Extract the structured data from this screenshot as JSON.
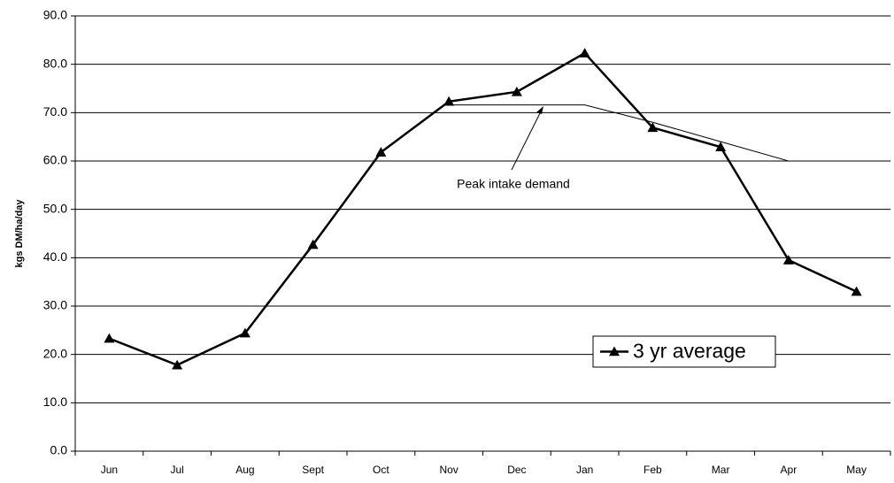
{
  "chart_data": {
    "type": "line",
    "y_label": "kgs DM/ha/day",
    "categories": [
      "Jun",
      "Jul",
      "Aug",
      "Sept",
      "Oct",
      "Nov",
      "Dec",
      "Jan",
      "Feb",
      "Mar",
      "Apr",
      "May"
    ],
    "series": [
      {
        "name": "3 yr average",
        "color": "#000000",
        "values": [
          23.3,
          17.8,
          24.4,
          42.7,
          61.8,
          72.3,
          74.3,
          82.3,
          66.9,
          62.9,
          39.5,
          33.0
        ]
      }
    ],
    "annotation": {
      "text": "Peak intake demand",
      "color": "#000000",
      "values": [
        null,
        null,
        null,
        null,
        null,
        71.6,
        71.6,
        71.6,
        68.0,
        64.0,
        60.0,
        null
      ]
    },
    "ylim": [
      0,
      90
    ],
    "yticks": [
      {
        "value": 0,
        "label": "0.0"
      },
      {
        "value": 10,
        "label": "10.0"
      },
      {
        "value": 20,
        "label": "20.0"
      },
      {
        "value": 30,
        "label": "30.0"
      },
      {
        "value": 40,
        "label": "40.0"
      },
      {
        "value": 50,
        "label": "50.0"
      },
      {
        "value": 60,
        "label": "60.0"
      },
      {
        "value": 70,
        "label": "70.0"
      },
      {
        "value": 80,
        "label": "80.0"
      },
      {
        "value": 90,
        "label": "90.0"
      }
    ],
    "grid": true,
    "legend": "right"
  }
}
